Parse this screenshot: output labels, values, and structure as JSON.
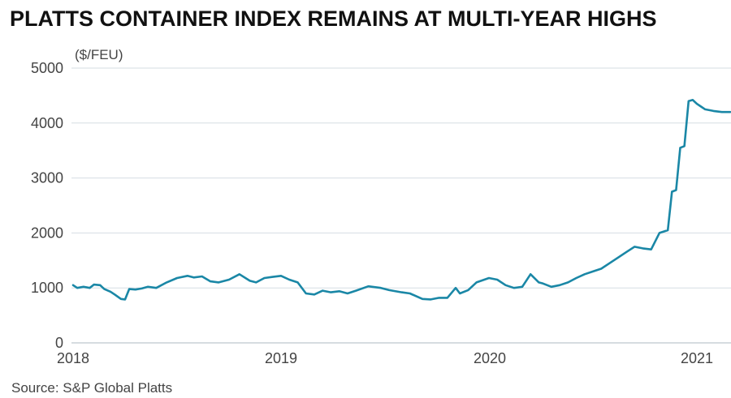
{
  "chart_data": {
    "type": "line",
    "title": "PLATTS CONTAINER INDEX REMAINS AT MULTI-YEAR HIGHS",
    "unit_label": "($/FEU)",
    "source": "Source: S&P Global Platts",
    "ylim": [
      0,
      5000
    ],
    "y_ticks": [
      "0",
      "1000",
      "2000",
      "3000",
      "4000",
      "5000"
    ],
    "x_ticks": [
      "2018",
      "2019",
      "2020",
      "2021"
    ],
    "grid": true,
    "line_color": "#1a87a6",
    "series": [
      {
        "x": [
          2018.0,
          2018.02,
          2018.05,
          2018.08,
          2018.1,
          2018.13,
          2018.15,
          2018.18,
          2018.2,
          2018.23,
          2018.25,
          2018.27,
          2018.3,
          2018.33,
          2018.36,
          2018.4,
          2018.45,
          2018.5,
          2018.55,
          2018.58,
          2018.62,
          2018.66,
          2018.7,
          2018.75,
          2018.8,
          2018.85,
          2018.88,
          2018.92,
          2018.96,
          2019.0,
          2019.04,
          2019.08,
          2019.12,
          2019.16,
          2019.2,
          2019.24,
          2019.28,
          2019.32,
          2019.36,
          2019.42,
          2019.48,
          2019.52,
          2019.58,
          2019.62,
          2019.68,
          2019.72,
          2019.76,
          2019.8,
          2019.84,
          2019.86,
          2019.9,
          2019.94,
          2020.0,
          2020.04,
          2020.08,
          2020.12,
          2020.16,
          2020.2,
          2020.24,
          2020.26,
          2020.3,
          2020.34,
          2020.38,
          2020.42,
          2020.46,
          2020.5,
          2020.54,
          2020.58,
          2020.62,
          2020.66,
          2020.7,
          2020.74,
          2020.78,
          2020.82,
          2020.86,
          2020.88,
          2020.9,
          2020.92,
          2020.94,
          2020.96,
          2020.98,
          2021.0,
          2021.02,
          2021.04,
          2021.08,
          2021.12,
          2021.16
        ],
        "y": [
          1050,
          1000,
          1020,
          1000,
          1060,
          1050,
          980,
          930,
          880,
          800,
          790,
          980,
          970,
          990,
          1020,
          1000,
          1100,
          1180,
          1220,
          1190,
          1210,
          1120,
          1100,
          1150,
          1250,
          1130,
          1100,
          1180,
          1200,
          1220,
          1150,
          1100,
          900,
          880,
          950,
          920,
          940,
          900,
          950,
          1030,
          1000,
          960,
          920,
          900,
          800,
          790,
          820,
          820,
          1000,
          900,
          960,
          1100,
          1180,
          1150,
          1050,
          1000,
          1020,
          1250,
          1100,
          1080,
          1020,
          1050,
          1100,
          1180,
          1250,
          1300,
          1350,
          1450,
          1550,
          1650,
          1750,
          1720,
          1700,
          2000,
          2050,
          2750,
          2780,
          3550,
          3580,
          4400,
          4420,
          4350,
          4300,
          4250,
          4220,
          4200,
          4200
        ]
      }
    ]
  }
}
